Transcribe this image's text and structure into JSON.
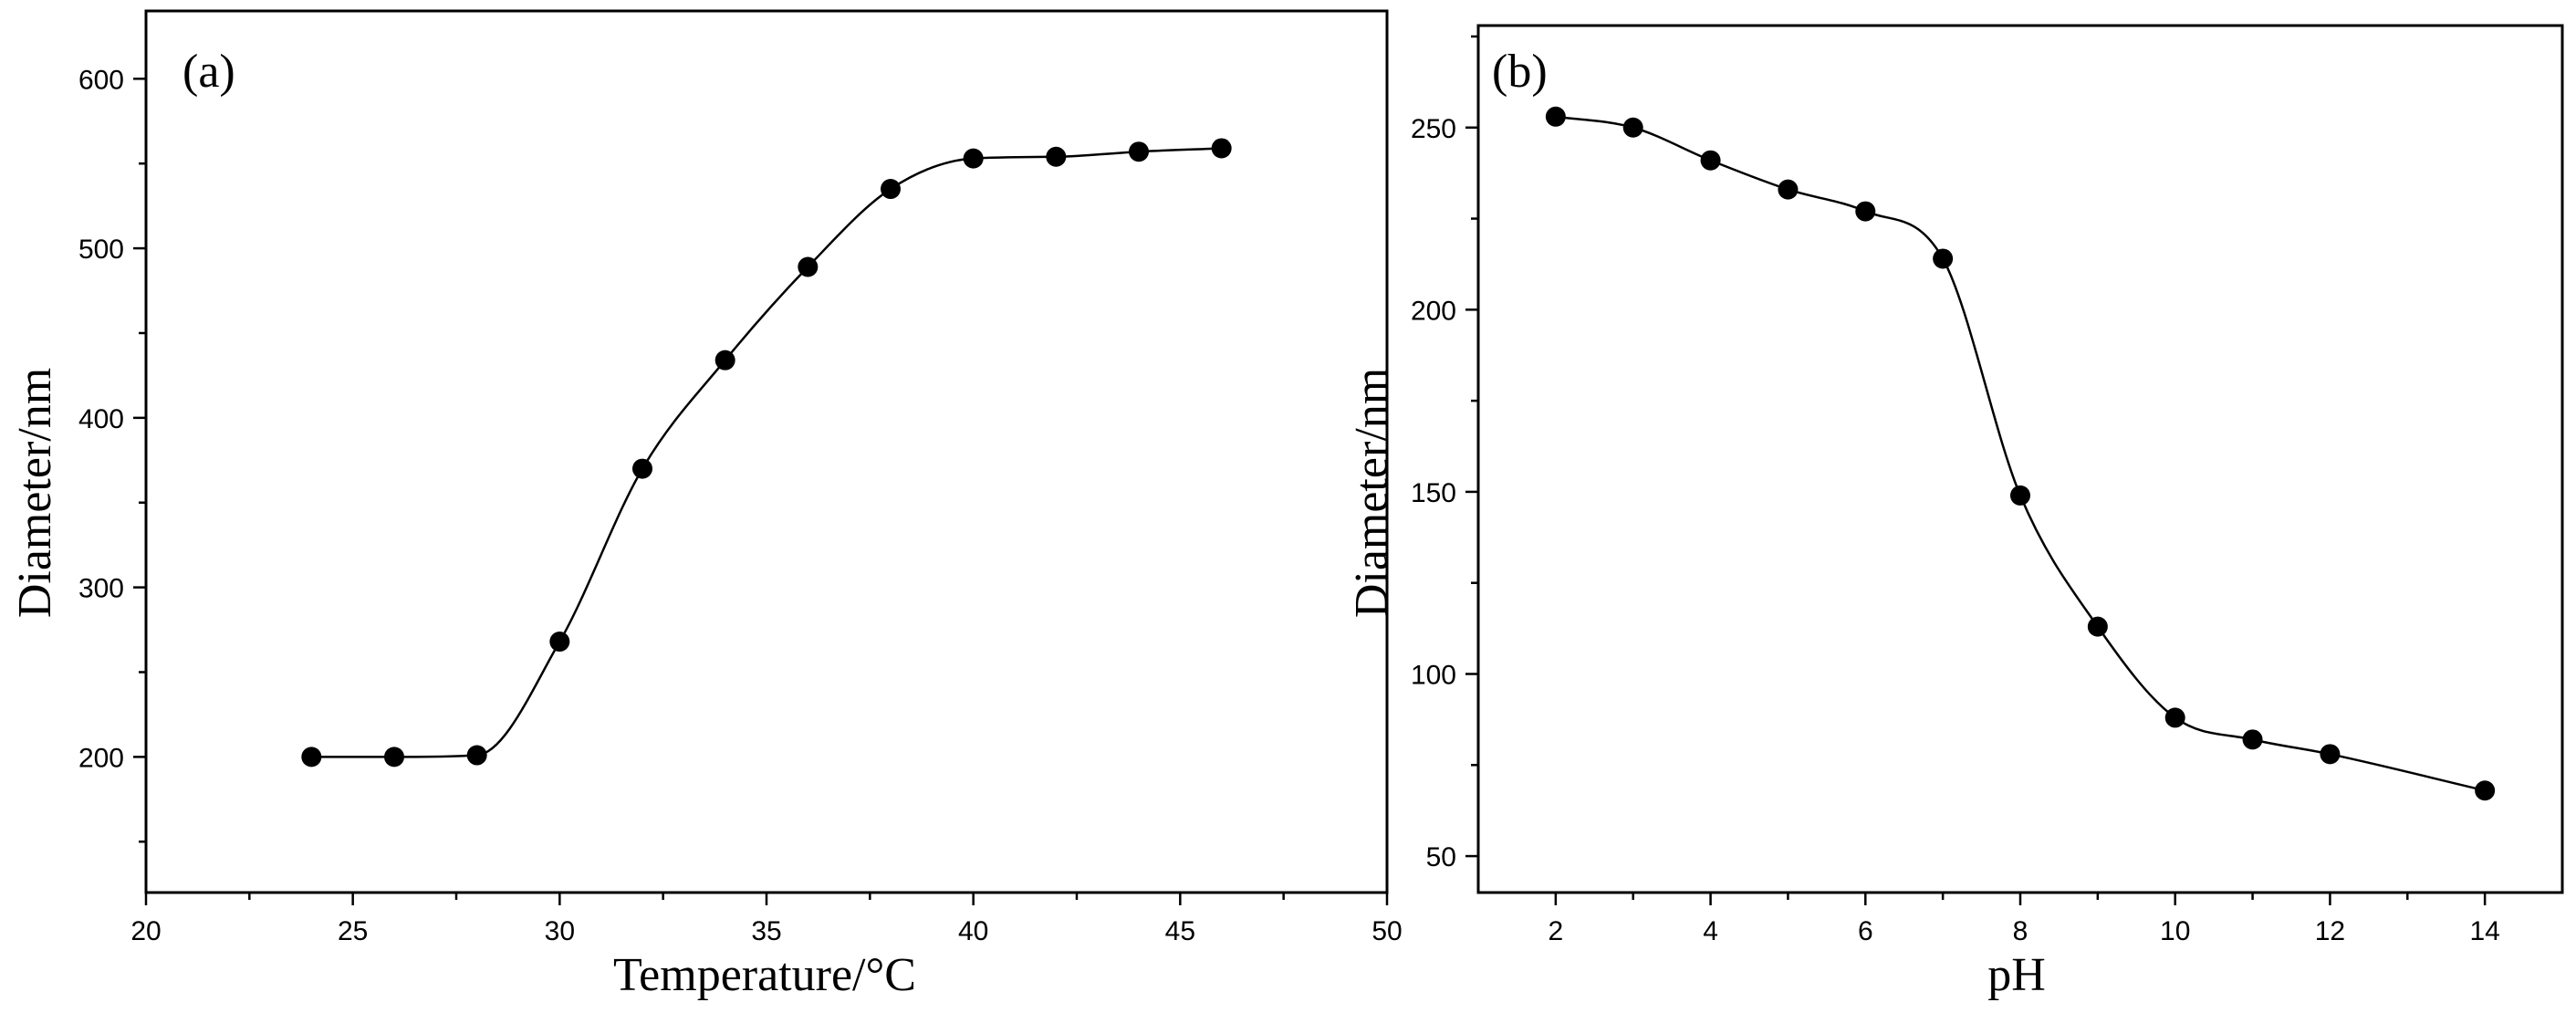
{
  "chart_data": [
    {
      "type": "scatter",
      "panel_label": "(a)",
      "xlabel": "Temperature/°C",
      "ylabel": "Diameter/nm",
      "xlim": [
        20,
        50
      ],
      "ylim": [
        120,
        640
      ],
      "xticks": [
        20,
        25,
        30,
        35,
        40,
        45,
        50
      ],
      "yticks": [
        200,
        300,
        400,
        500,
        600
      ],
      "marker": "filled-circle",
      "fit_line": true,
      "grid": false,
      "series": [
        {
          "x": [
            24,
            26,
            28,
            30,
            32,
            34,
            36,
            38,
            40,
            42,
            44,
            46
          ],
          "y": [
            200,
            200,
            201,
            268,
            370,
            434,
            489,
            535,
            553,
            554,
            557,
            559
          ]
        }
      ]
    },
    {
      "type": "scatter",
      "panel_label": "(b)",
      "xlabel": "pH",
      "ylabel": "Diameter/nm",
      "xlim": [
        1,
        15
      ],
      "ylim": [
        40,
        278
      ],
      "xticks": [
        2,
        4,
        6,
        8,
        10,
        12,
        14
      ],
      "yticks": [
        50,
        100,
        150,
        200,
        250
      ],
      "marker": "filled-circle",
      "fit_line": true,
      "grid": false,
      "series": [
        {
          "x": [
            2,
            3,
            4,
            5,
            6,
            7,
            8,
            9,
            10,
            11,
            12,
            14
          ],
          "y": [
            253,
            250,
            241,
            233,
            227,
            214,
            149,
            113,
            88,
            82,
            78,
            68
          ]
        }
      ]
    }
  ]
}
